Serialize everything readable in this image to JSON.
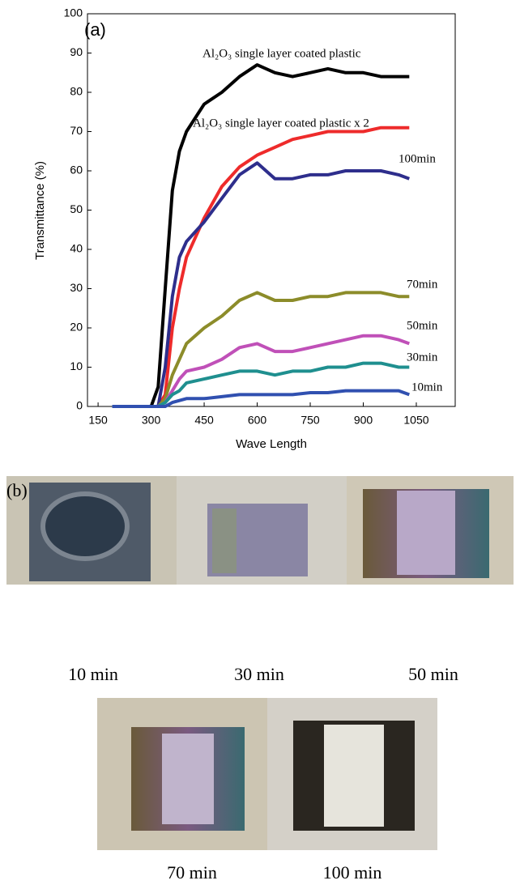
{
  "chart_data": {
    "type": "line",
    "panel_label": "(a)",
    "xlabel": "Wave Length",
    "ylabel": "Transmittance (%)",
    "x": [
      190,
      300,
      320,
      340,
      360,
      380,
      400,
      450,
      500,
      550,
      600,
      650,
      700,
      750,
      800,
      850,
      900,
      950,
      1000,
      1030
    ],
    "xlim": [
      120,
      1160
    ],
    "xticks": [
      150,
      300,
      450,
      600,
      750,
      900,
      1050
    ],
    "ylim": [
      0,
      100
    ],
    "yticks": [
      0,
      10,
      20,
      30,
      40,
      50,
      60,
      70,
      80,
      90,
      100
    ],
    "series": [
      {
        "name": "Al₂O₃ single layer coated plastic",
        "color": "#000000",
        "values": [
          0,
          0,
          5,
          30,
          55,
          65,
          70,
          77,
          80,
          84,
          87,
          85,
          84,
          85,
          86,
          85,
          85,
          84,
          84,
          84
        ]
      },
      {
        "name": "Al₂O₃ single layer coated plastic x 2",
        "color": "#ee2b2b",
        "values": [
          0,
          0,
          0,
          3,
          20,
          30,
          38,
          48,
          56,
          61,
          64,
          66,
          68,
          69,
          70,
          70,
          70,
          71,
          71,
          71
        ]
      },
      {
        "name": "100min",
        "color": "#2e2e8c",
        "values": [
          0,
          0,
          0,
          10,
          28,
          38,
          42,
          47,
          53,
          59,
          62,
          58,
          58,
          59,
          59,
          60,
          60,
          60,
          59,
          58
        ]
      },
      {
        "name": "70min",
        "color": "#8c8c2a",
        "values": [
          0,
          0,
          0,
          2,
          8,
          12,
          16,
          20,
          23,
          27,
          29,
          27,
          27,
          28,
          28,
          29,
          29,
          29,
          28,
          28
        ]
      },
      {
        "name": "50min",
        "color": "#c050b8",
        "values": [
          0,
          0,
          0,
          1,
          4,
          7,
          9,
          10,
          12,
          15,
          16,
          14,
          14,
          15,
          16,
          17,
          18,
          18,
          17,
          16
        ]
      },
      {
        "name": "30min",
        "color": "#1f8f8f",
        "values": [
          0,
          0,
          0,
          1,
          3,
          4,
          6,
          7,
          8,
          9,
          9,
          8,
          9,
          9,
          10,
          10,
          11,
          11,
          10,
          10
        ]
      },
      {
        "name": "10min",
        "color": "#3050b0",
        "values": [
          0,
          0,
          0,
          0,
          1,
          1.5,
          2,
          2,
          2.5,
          3,
          3,
          3,
          3,
          3.5,
          3.5,
          4,
          4,
          4,
          4,
          3
        ]
      }
    ]
  },
  "figure_b": {
    "panel_label": "(b)",
    "captions": [
      "10 min",
      "30 min",
      "50 min",
      "70 min",
      "100 min"
    ]
  }
}
